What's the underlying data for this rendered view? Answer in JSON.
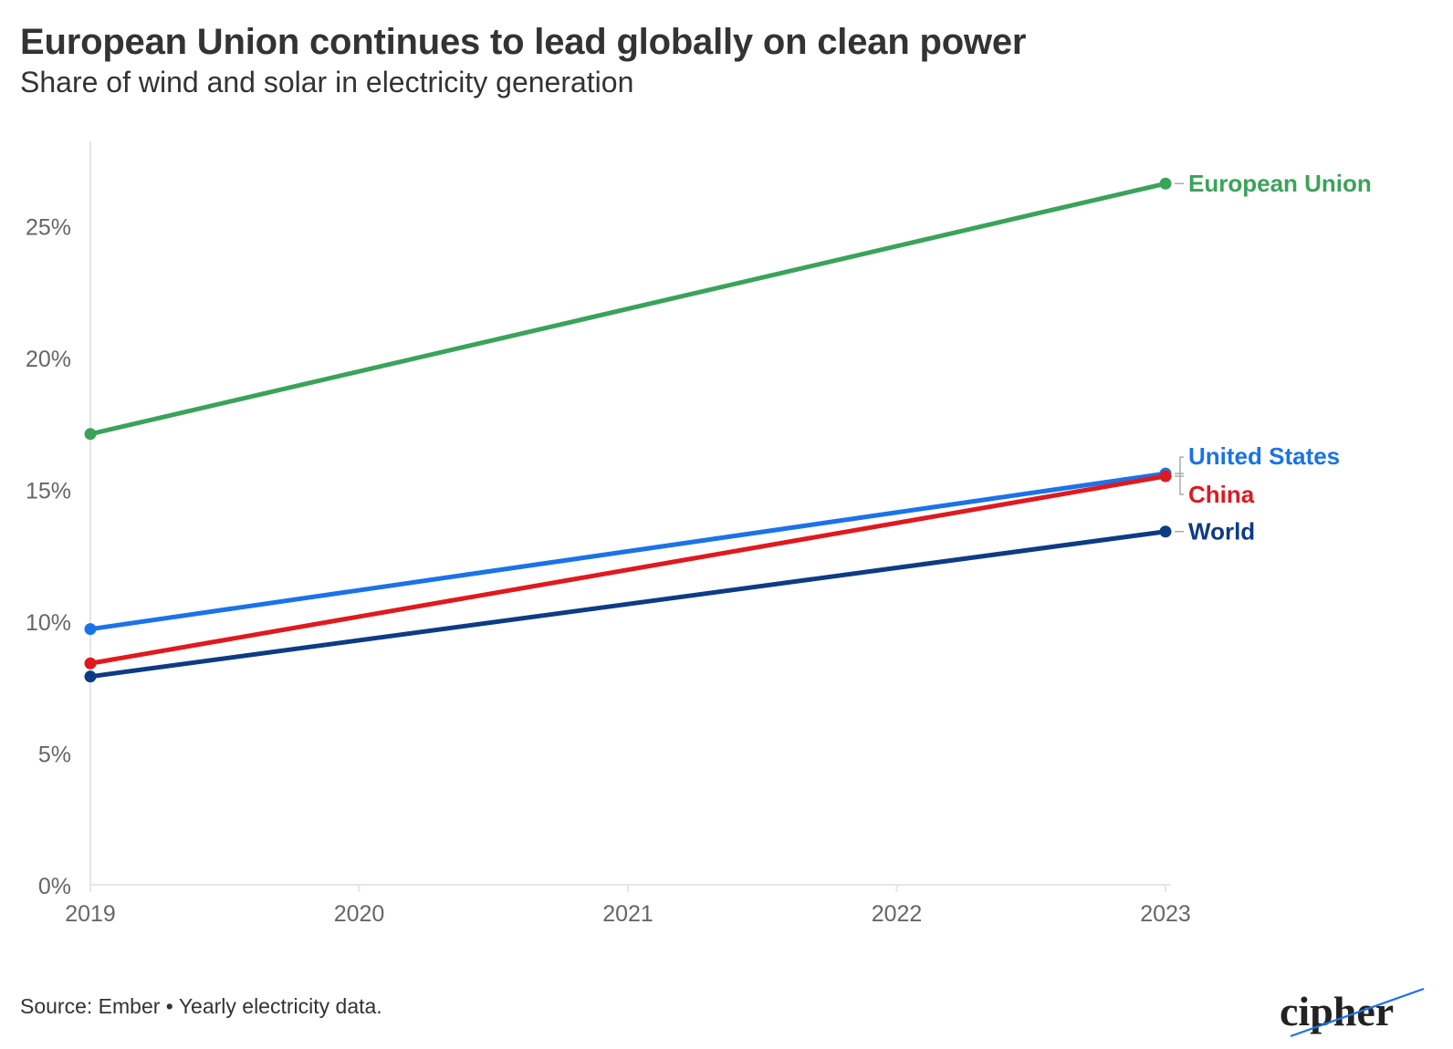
{
  "header": {
    "title": "European Union continues to lead globally on clean power",
    "subtitle": "Share of wind and solar in electricity generation"
  },
  "footer": {
    "source": "Source: Ember • Yearly electricity data.",
    "logo_text": "cipher"
  },
  "chart_data": {
    "type": "line",
    "title": "European Union continues to lead globally on clean power",
    "subtitle": "Share of wind and solar in electricity generation",
    "xlabel": "",
    "ylabel": "",
    "x": [
      2019,
      2023
    ],
    "x_ticks": [
      "2019",
      "2020",
      "2021",
      "2022",
      "2023"
    ],
    "y_ticks": [
      "0%",
      "5%",
      "10%",
      "15%",
      "20%",
      "25%"
    ],
    "y_tick_values": [
      0,
      5,
      10,
      15,
      20,
      25
    ],
    "ylim": [
      0,
      28.2
    ],
    "xlim": [
      2019,
      2023
    ],
    "grid": false,
    "legend": "direct labels at line ends",
    "series": [
      {
        "name": "European Union",
        "color": "#3aa35a",
        "values": [
          17.1,
          26.6
        ]
      },
      {
        "name": "United States",
        "color": "#1a73e8",
        "values": [
          9.7,
          15.6
        ]
      },
      {
        "name": "China",
        "color": "#e0191f",
        "values": [
          8.4,
          15.5
        ]
      },
      {
        "name": "World",
        "color": "#0d3b85",
        "values": [
          7.9,
          13.4
        ]
      }
    ]
  }
}
